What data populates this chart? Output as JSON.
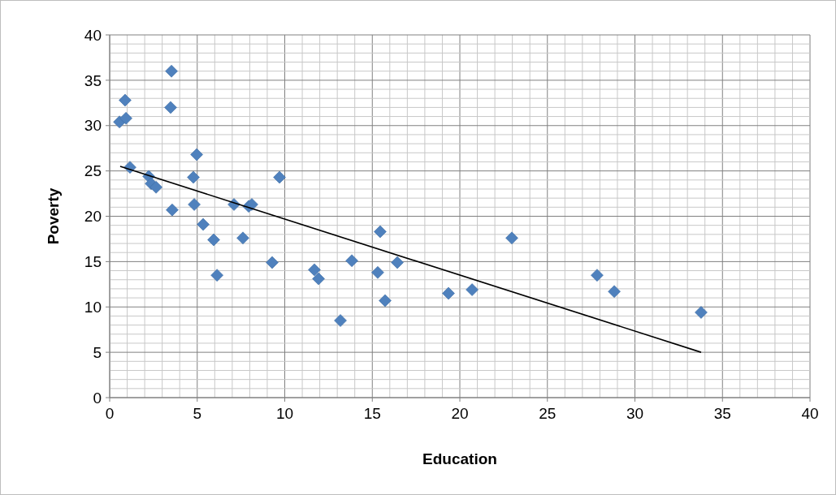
{
  "chart_data": {
    "type": "scatter",
    "xlabel": "Education",
    "ylabel": "Poverty",
    "xlim": [
      0,
      40
    ],
    "ylim": [
      0,
      40
    ],
    "xticks": [
      0,
      {
        "value": 1,
        "label": null
      },
      {
        "value": 2,
        "label": null
      },
      {
        "value": 3,
        "label": null
      },
      {
        "value": 4,
        "label": null
      },
      5,
      {
        "value": 6,
        "label": null
      },
      {
        "value": 7,
        "label": null
      },
      {
        "value": 8,
        "label": null
      },
      {
        "value": 9,
        "label": null
      },
      10,
      {
        "value": 11,
        "label": null
      },
      {
        "value": 12,
        "label": null
      },
      {
        "value": 13,
        "label": null
      },
      {
        "value": 14,
        "label": null
      },
      15,
      {
        "value": 16,
        "label": null
      },
      {
        "value": 17,
        "label": null
      },
      {
        "value": 18,
        "label": null
      },
      {
        "value": 19,
        "label": null
      },
      20,
      {
        "value": 21,
        "label": null
      },
      {
        "value": 22,
        "label": null
      },
      {
        "value": 23,
        "label": null
      },
      {
        "value": 24,
        "label": null
      },
      25,
      {
        "value": 26,
        "label": null
      },
      {
        "value": 27,
        "label": null
      },
      {
        "value": 28,
        "label": null
      },
      {
        "value": 29,
        "label": null
      },
      30,
      {
        "value": 31,
        "label": null
      },
      {
        "value": 32,
        "label": null
      },
      {
        "value": 33,
        "label": null
      },
      {
        "value": 34,
        "label": null
      },
      35,
      {
        "value": 36,
        "label": null
      },
      {
        "value": 37,
        "label": null
      },
      {
        "value": 38,
        "label": null
      },
      {
        "value": 39,
        "label": null
      },
      40
    ],
    "yticks": [
      0,
      {
        "value": 1,
        "label": null
      },
      {
        "value": 2,
        "label": null
      },
      {
        "value": 3,
        "label": null
      },
      {
        "value": 4,
        "label": null
      },
      5,
      {
        "value": 6,
        "label": null
      },
      {
        "value": 7,
        "label": null
      },
      {
        "value": 8,
        "label": null
      },
      {
        "value": 9,
        "label": null
      },
      10,
      {
        "value": 11,
        "label": null
      },
      {
        "value": 12,
        "label": null
      },
      {
        "value": 13,
        "label": null
      },
      {
        "value": 14,
        "label": null
      },
      15,
      {
        "value": 16,
        "label": null
      },
      {
        "value": 17,
        "label": null
      },
      {
        "value": 18,
        "label": null
      },
      {
        "value": 19,
        "label": null
      },
      20,
      {
        "value": 21,
        "label": null
      },
      {
        "value": 22,
        "label": null
      },
      {
        "value": 23,
        "label": null
      },
      {
        "value": 24,
        "label": null
      },
      25,
      {
        "value": 26,
        "label": null
      },
      {
        "value": 27,
        "label": null
      },
      {
        "value": 28,
        "label": null
      },
      {
        "value": 29,
        "label": null
      },
      30,
      {
        "value": 31,
        "label": null
      },
      {
        "value": 32,
        "label": null
      },
      {
        "value": 33,
        "label": null
      },
      {
        "value": 34,
        "label": null
      },
      35,
      {
        "value": 36,
        "label": null
      },
      {
        "value": 37,
        "label": null
      },
      {
        "value": 38,
        "label": null
      },
      {
        "value": 39,
        "label": null
      },
      40
    ],
    "grid": true,
    "marker": "diamond",
    "series": [
      {
        "color": "#4f81bd",
        "x": [
          0.56,
          0.93,
          0.88,
          1.16,
          3.53,
          3.48,
          2.23,
          2.37,
          2.65,
          3.57,
          4.97,
          4.78,
          4.83,
          5.34,
          5.94,
          6.13,
          7.1,
          7.61,
          7.94,
          8.12,
          9.7,
          9.28,
          11.69,
          11.93,
          13.18,
          13.83,
          15.45,
          15.31,
          15.73,
          16.43,
          19.35,
          20.7,
          22.97,
          27.84,
          28.82,
          33.78
        ],
        "values": [
          30.4,
          30.8,
          32.8,
          25.4,
          36.0,
          32.0,
          24.4,
          23.6,
          23.2,
          20.7,
          26.8,
          24.3,
          21.3,
          19.1,
          17.4,
          13.5,
          21.3,
          17.6,
          21.1,
          21.3,
          24.3,
          14.9,
          14.1,
          13.1,
          8.5,
          15.1,
          18.3,
          13.8,
          10.7,
          14.9,
          11.5,
          11.9,
          17.6,
          13.5,
          11.7,
          9.4
        ]
      },
      {
        "type": "line",
        "color": "#000000",
        "marker": "none",
        "line_style": "solid",
        "x": [
          0.6,
          33.78
        ],
        "values": [
          25.5,
          5.0
        ]
      }
    ]
  }
}
